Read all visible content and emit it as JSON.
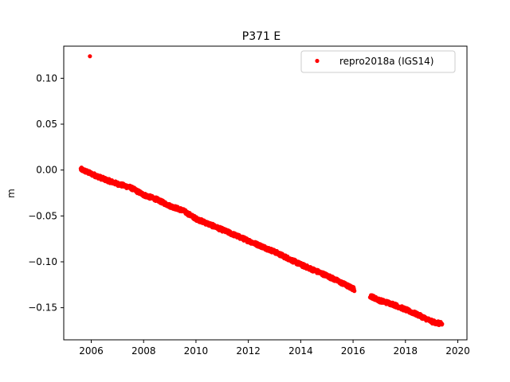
{
  "chart_data": {
    "type": "scatter",
    "title": "P371 E",
    "xlabel": "",
    "ylabel": "m",
    "xlim": [
      2004.95,
      2020.35
    ],
    "ylim": [
      -0.185,
      0.135
    ],
    "x_ticks": [
      2006,
      2008,
      2010,
      2012,
      2014,
      2016,
      2018,
      2020
    ],
    "x_tick_labels": [
      "2006",
      "2008",
      "2010",
      "2012",
      "2014",
      "2016",
      "2018",
      "2020"
    ],
    "y_ticks": [
      0.1,
      0.05,
      0.0,
      -0.05,
      -0.1,
      -0.15
    ],
    "y_tick_labels": [
      "0.10",
      "0.05",
      "0.00",
      "−0.05",
      "−0.10",
      "−0.15"
    ],
    "grid": false,
    "legend_position": "top-right",
    "series": [
      {
        "name": "repro2018a (IGS14)",
        "color": "#ff0000",
        "marker": "point",
        "outliers": [
          {
            "x": 2005.95,
            "y": 0.124
          }
        ],
        "segments": [
          {
            "x": [
              2005.6,
              2006.0,
              2006.5,
              2007.0,
              2007.5,
              2008.0,
              2008.5,
              2009.0,
              2009.5,
              2010.0,
              2010.5,
              2011.0,
              2011.5,
              2012.0,
              2012.5,
              2013.0,
              2013.5,
              2014.0,
              2014.5,
              2015.0,
              2015.5,
              2016.05
            ],
            "y": [
              0.001,
              -0.004,
              -0.01,
              -0.015,
              -0.019,
              -0.027,
              -0.032,
              -0.039,
              -0.044,
              -0.053,
              -0.059,
              -0.065,
              -0.071,
              -0.077,
              -0.083,
              -0.089,
              -0.096,
              -0.103,
              -0.109,
              -0.115,
              -0.122,
              -0.13
            ]
          },
          {
            "x": [
              2016.65,
              2017.0,
              2017.5,
              2018.0,
              2018.5,
              2019.0,
              2019.4
            ],
            "y": [
              -0.137,
              -0.142,
              -0.146,
              -0.152,
              -0.158,
              -0.165,
              -0.168
            ]
          }
        ]
      }
    ]
  }
}
